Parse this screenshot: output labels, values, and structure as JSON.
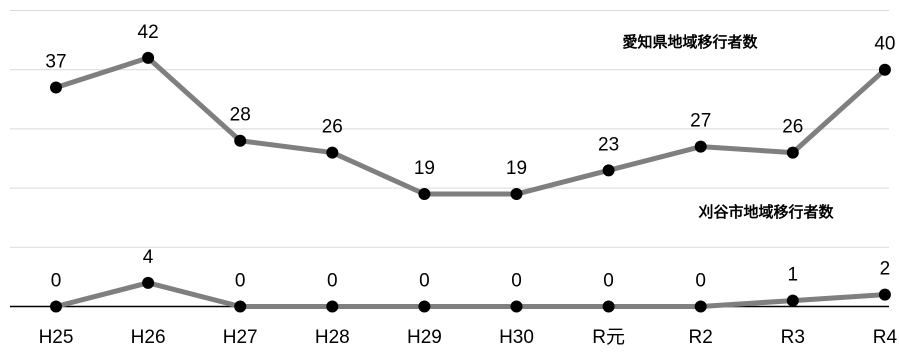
{
  "chart_data": {
    "type": "line",
    "categories": [
      "H25",
      "H26",
      "H27",
      "H28",
      "H29",
      "H30",
      "R元",
      "R2",
      "R3",
      "R4"
    ],
    "series": [
      {
        "name": "愛知県地域移行者数",
        "values": [
          37,
          42,
          28,
          26,
          19,
          19,
          23,
          27,
          26,
          40
        ],
        "color": "#7f7f7f"
      },
      {
        "name": "刈谷市地域移行者数",
        "values": [
          0,
          4,
          0,
          0,
          0,
          0,
          0,
          0,
          1,
          2
        ],
        "color": "#7f7f7f"
      }
    ],
    "ylim": [
      0,
      50
    ],
    "grid": true,
    "legend": "inline labels",
    "point_color": "#000000"
  }
}
